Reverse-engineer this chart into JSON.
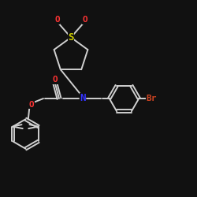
{
  "background_color": "#111111",
  "bond_color": "#d0d0d0",
  "atom_colors": {
    "S": "#cccc00",
    "O": "#ff3333",
    "N": "#3333ff",
    "Br": "#cc4422",
    "C": "#d0d0d0"
  },
  "lw": 1.4,
  "font_size": 8,
  "figsize": [
    2.5,
    2.5
  ],
  "dpi": 100
}
